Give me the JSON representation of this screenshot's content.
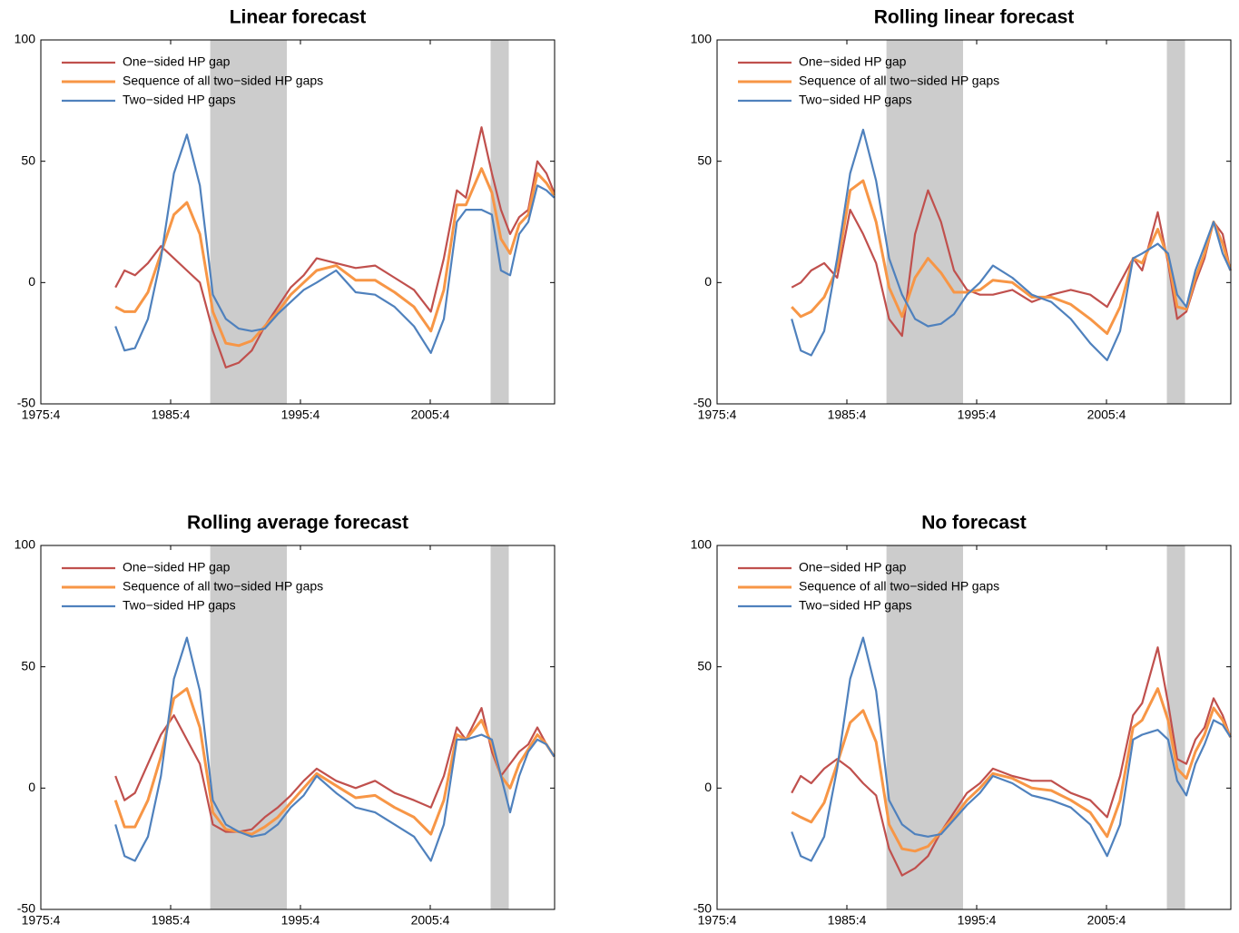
{
  "chart_data": [
    {
      "type": "line",
      "title": "Linear forecast",
      "x": [
        1981.5,
        1982.2,
        1983,
        1984,
        1985,
        1986,
        1987,
        1988,
        1989,
        1990,
        1991,
        1992,
        1993,
        1994,
        1995,
        1996,
        1997,
        1998.5,
        2000,
        2001.5,
        2003,
        2004.5,
        2005.8,
        2006.8,
        2007.8,
        2008.5,
        2009.7,
        2010.5,
        2011.2,
        2011.9,
        2012.6,
        2013.3,
        2014,
        2014.7,
        2015.3
      ],
      "series": [
        {
          "name": "One−sided HP gap",
          "color": "#c0504d",
          "values": [
            -2,
            5,
            3,
            8,
            15,
            10,
            5,
            0,
            -20,
            -35,
            -33,
            -28,
            -18,
            -10,
            -2,
            3,
            10,
            8,
            6,
            7,
            2,
            -3,
            -12,
            10,
            38,
            35,
            64,
            45,
            30,
            20,
            27,
            30,
            50,
            45,
            37
          ]
        },
        {
          "name": "Sequence of all two−sided HP gaps",
          "color": "#f79646",
          "values": [
            -10,
            -12,
            -12,
            -4,
            12,
            28,
            33,
            20,
            -12,
            -25,
            -26,
            -24,
            -18,
            -12,
            -5,
            0,
            5,
            7,
            1,
            1,
            -4,
            -10,
            -20,
            -3,
            32,
            32,
            47,
            37,
            18,
            12,
            24,
            28,
            45,
            41,
            36
          ]
        },
        {
          "name": "Two−sided HP gaps",
          "color": "#4f81bd",
          "values": [
            -18,
            -28,
            -27,
            -15,
            10,
            45,
            61,
            40,
            -5,
            -15,
            -19,
            -20,
            -19,
            -13,
            -8,
            -3,
            0,
            5,
            -4,
            -5,
            -10,
            -18,
            -29,
            -15,
            25,
            30,
            30,
            28,
            5,
            3,
            20,
            25,
            40,
            38,
            35
          ]
        }
      ],
      "shaded": [
        [
          1988.8,
          1994.7
        ],
        [
          2010.4,
          2011.8
        ]
      ],
      "xlim": [
        1975.75,
        2015.33
      ],
      "ylim": [
        -50,
        100
      ],
      "xticks": [
        {
          "value": 1975.75,
          "label": "1975:4"
        },
        {
          "value": 1985.75,
          "label": "1985:4"
        },
        {
          "value": 1995.75,
          "label": "1995:4"
        },
        {
          "value": 2005.75,
          "label": "2005:4"
        }
      ],
      "yticks": [
        -50,
        0,
        50,
        100
      ],
      "legend": "upper left"
    },
    {
      "type": "line",
      "title": "Rolling linear forecast",
      "x": [
        1981.5,
        1982.2,
        1983,
        1984,
        1985,
        1986,
        1987,
        1988,
        1989,
        1990,
        1991,
        1992,
        1993,
        1994,
        1995,
        1996,
        1997,
        1998.5,
        2000,
        2001.5,
        2003,
        2004.5,
        2005.8,
        2006.8,
        2007.8,
        2008.5,
        2009.7,
        2010.5,
        2011.2,
        2011.9,
        2012.6,
        2013.3,
        2014,
        2014.7,
        2015.3
      ],
      "series": [
        {
          "name": "One−sided HP gap",
          "color": "#c0504d",
          "values": [
            -2,
            0,
            5,
            8,
            2,
            30,
            20,
            8,
            -15,
            -22,
            20,
            38,
            25,
            5,
            -3,
            -5,
            -5,
            -3,
            -8,
            -5,
            -3,
            -5,
            -10,
            0,
            10,
            5,
            29,
            8,
            -15,
            -12,
            0,
            10,
            25,
            20,
            5
          ]
        },
        {
          "name": "Sequence of all two−sided HP gaps",
          "color": "#f79646",
          "values": [
            -10,
            -14,
            -12,
            -6,
            6,
            38,
            42,
            25,
            -2,
            -14,
            2,
            10,
            4,
            -4,
            -4,
            -3,
            1,
            0,
            -6,
            -6,
            -9,
            -15,
            -21,
            -10,
            10,
            8,
            22,
            10,
            -10,
            -11,
            2,
            12,
            25,
            16,
            5
          ]
        },
        {
          "name": "Two−sided HP gaps",
          "color": "#4f81bd",
          "values": [
            -15,
            -28,
            -30,
            -20,
            10,
            45,
            63,
            42,
            10,
            -5,
            -15,
            -18,
            -17,
            -13,
            -5,
            0,
            7,
            2,
            -5,
            -8,
            -15,
            -25,
            -32,
            -20,
            10,
            12,
            16,
            12,
            -5,
            -10,
            5,
            15,
            25,
            12,
            5
          ]
        }
      ],
      "shaded": [
        [
          1988.8,
          1994.7
        ],
        [
          2010.4,
          2011.8
        ]
      ],
      "xlim": [
        1975.75,
        2015.33
      ],
      "ylim": [
        -50,
        100
      ],
      "xticks": [
        {
          "value": 1975.75,
          "label": "1975:4"
        },
        {
          "value": 1985.75,
          "label": "1985:4"
        },
        {
          "value": 1995.75,
          "label": "1995:4"
        },
        {
          "value": 2005.75,
          "label": "2005:4"
        }
      ],
      "yticks": [
        -50,
        0,
        50,
        100
      ],
      "legend": "upper left"
    },
    {
      "type": "line",
      "title": "Rolling average forecast",
      "x": [
        1981.5,
        1982.2,
        1983,
        1984,
        1985,
        1986,
        1987,
        1988,
        1989,
        1990,
        1991,
        1992,
        1993,
        1994,
        1995,
        1996,
        1997,
        1998.5,
        2000,
        2001.5,
        2003,
        2004.5,
        2005.8,
        2006.8,
        2007.8,
        2008.5,
        2009.7,
        2010.5,
        2011.2,
        2011.9,
        2012.6,
        2013.3,
        2014,
        2014.7,
        2015.3
      ],
      "series": [
        {
          "name": "One−sided HP gap",
          "color": "#c0504d",
          "values": [
            5,
            -5,
            -2,
            10,
            22,
            30,
            20,
            10,
            -15,
            -18,
            -18,
            -17,
            -12,
            -8,
            -3,
            3,
            8,
            3,
            0,
            3,
            -2,
            -5,
            -8,
            5,
            25,
            20,
            33,
            15,
            5,
            10,
            15,
            18,
            25,
            18,
            13
          ]
        },
        {
          "name": "Sequence of all two−sided HP gaps",
          "color": "#f79646",
          "values": [
            -5,
            -16,
            -16,
            -5,
            13,
            37,
            41,
            25,
            -10,
            -17,
            -18,
            -19,
            -16,
            -12,
            -6,
            0,
            6,
            1,
            -4,
            -3,
            -8,
            -12,
            -19,
            -5,
            22,
            20,
            28,
            18,
            5,
            0,
            10,
            16,
            22,
            18,
            13
          ]
        },
        {
          "name": "Two−sided HP gaps",
          "color": "#4f81bd",
          "values": [
            -15,
            -28,
            -30,
            -20,
            5,
            45,
            62,
            40,
            -5,
            -15,
            -18,
            -20,
            -19,
            -15,
            -8,
            -3,
            5,
            -2,
            -8,
            -10,
            -15,
            -20,
            -30,
            -15,
            20,
            20,
            22,
            20,
            5,
            -10,
            5,
            15,
            20,
            18,
            13
          ]
        }
      ],
      "shaded": [
        [
          1988.8,
          1994.7
        ],
        [
          2010.4,
          2011.8
        ]
      ],
      "xlim": [
        1975.75,
        2015.33
      ],
      "ylim": [
        -50,
        100
      ],
      "xticks": [
        {
          "value": 1975.75,
          "label": "1975:4"
        },
        {
          "value": 1985.75,
          "label": "1985:4"
        },
        {
          "value": 1995.75,
          "label": "1995:4"
        },
        {
          "value": 2005.75,
          "label": "2005:4"
        }
      ],
      "yticks": [
        -50,
        0,
        50,
        100
      ],
      "legend": "upper left"
    },
    {
      "type": "line",
      "title": "No forecast",
      "x": [
        1981.5,
        1982.2,
        1983,
        1984,
        1985,
        1986,
        1987,
        1988,
        1989,
        1990,
        1991,
        1992,
        1993,
        1994,
        1995,
        1996,
        1997,
        1998.5,
        2000,
        2001.5,
        2003,
        2004.5,
        2005.8,
        2006.8,
        2007.8,
        2008.5,
        2009.7,
        2010.5,
        2011.2,
        2011.9,
        2012.6,
        2013.3,
        2014,
        2014.7,
        2015.3
      ],
      "series": [
        {
          "name": "One−sided HP gap",
          "color": "#c0504d",
          "values": [
            -2,
            5,
            2,
            8,
            12,
            8,
            2,
            -3,
            -25,
            -36,
            -33,
            -28,
            -18,
            -10,
            -2,
            2,
            8,
            5,
            3,
            3,
            -2,
            -5,
            -12,
            5,
            30,
            35,
            58,
            35,
            12,
            10,
            20,
            25,
            37,
            30,
            21
          ]
        },
        {
          "name": "Sequence of all two−sided HP gaps",
          "color": "#f79646",
          "values": [
            -10,
            -12,
            -14,
            -6,
            10,
            27,
            32,
            19,
            -15,
            -25,
            -26,
            -24,
            -18,
            -12,
            -5,
            0,
            6,
            4,
            0,
            -1,
            -5,
            -10,
            -20,
            -5,
            25,
            28,
            41,
            28,
            8,
            4,
            15,
            22,
            33,
            28,
            21
          ]
        },
        {
          "name": "Two−sided HP gaps",
          "color": "#4f81bd",
          "values": [
            -18,
            -28,
            -30,
            -20,
            8,
            45,
            62,
            40,
            -5,
            -15,
            -19,
            -20,
            -19,
            -13,
            -7,
            -2,
            5,
            2,
            -3,
            -5,
            -8,
            -15,
            -28,
            -15,
            20,
            22,
            24,
            20,
            3,
            -3,
            10,
            18,
            28,
            26,
            21
          ]
        }
      ],
      "shaded": [
        [
          1988.8,
          1994.7
        ],
        [
          2010.4,
          2011.8
        ]
      ],
      "xlim": [
        1975.75,
        2015.33
      ],
      "ylim": [
        -50,
        100
      ],
      "xticks": [
        {
          "value": 1975.75,
          "label": "1975:4"
        },
        {
          "value": 1985.75,
          "label": "1985:4"
        },
        {
          "value": 1995.75,
          "label": "1995:4"
        },
        {
          "value": 2005.75,
          "label": "2005:4"
        }
      ],
      "yticks": [
        -50,
        0,
        50,
        100
      ],
      "legend": "upper left"
    }
  ]
}
